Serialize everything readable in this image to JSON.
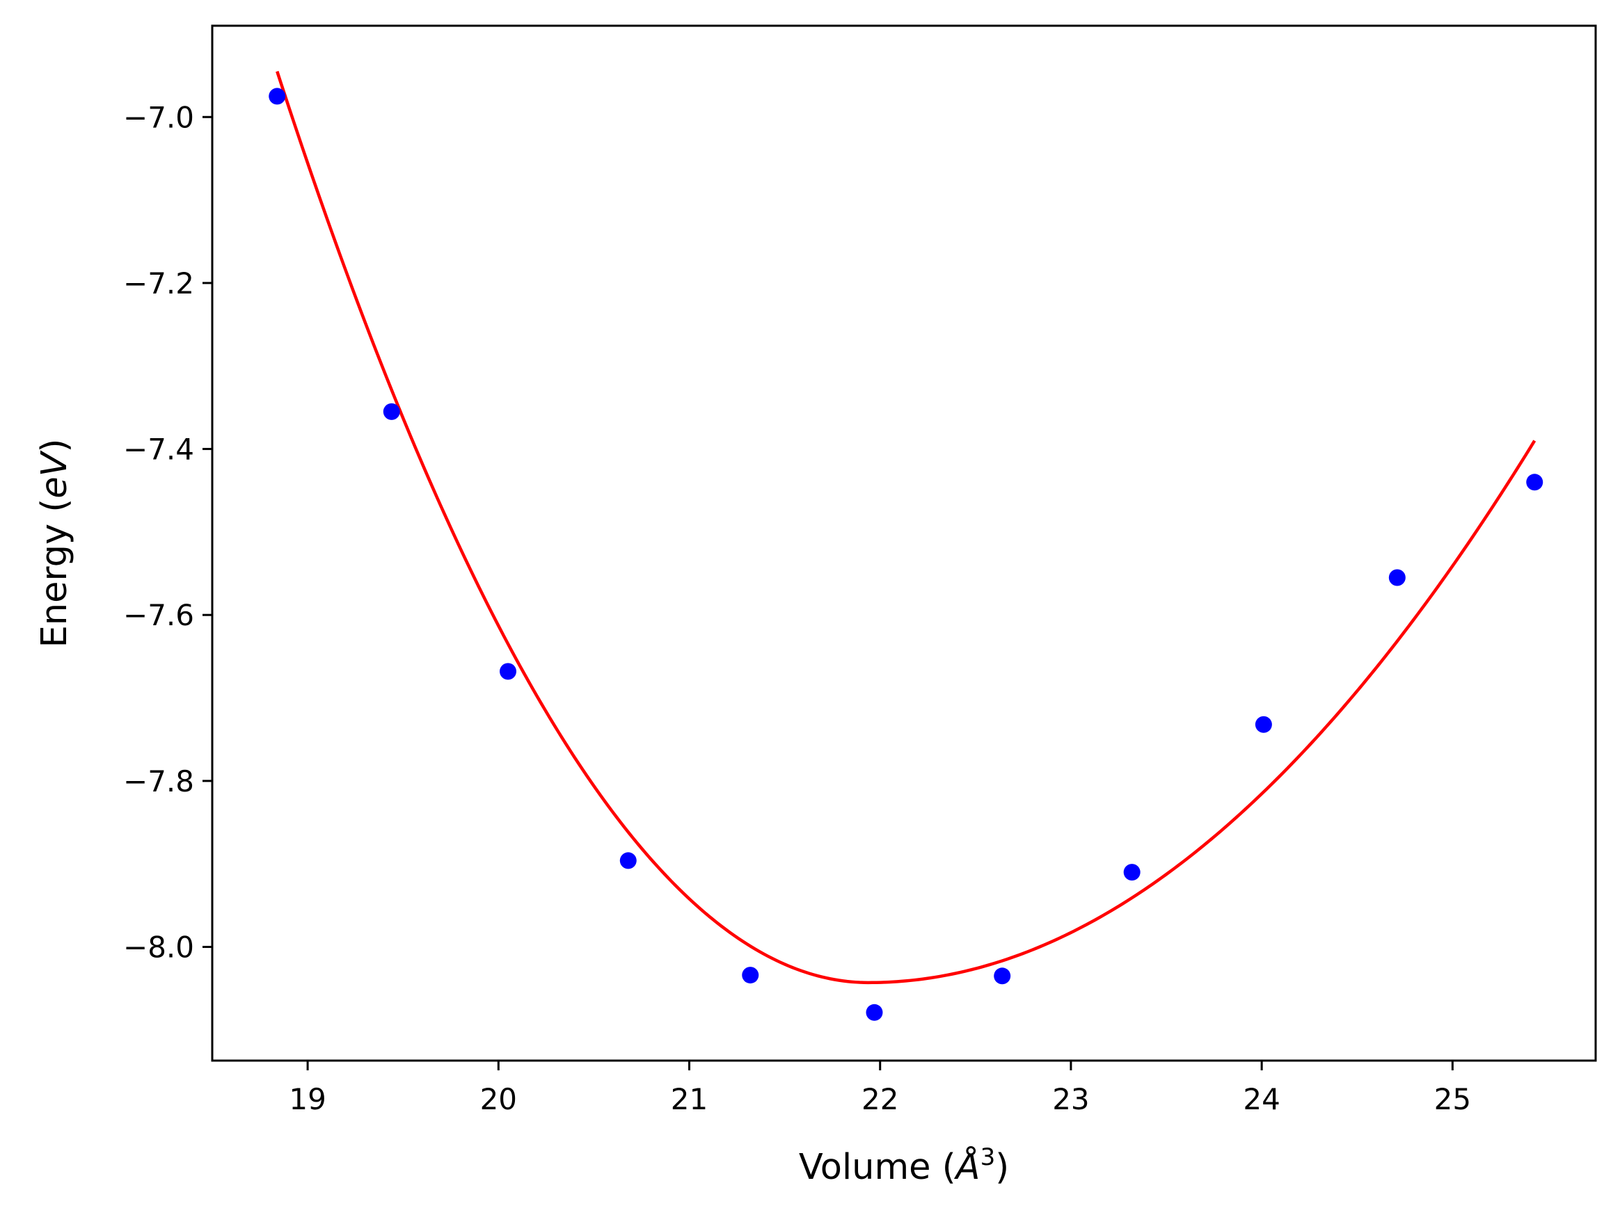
{
  "chart_data": {
    "type": "scatter",
    "xlabel": {
      "prefix": "Volume (",
      "symbol": "Å",
      "superscript": "3",
      "suffix": ")"
    },
    "ylabel": {
      "prefix": "Energy (",
      "unit": "eV",
      "suffix": ")"
    },
    "xlim": [
      18.5,
      25.75
    ],
    "ylim": [
      -8.137,
      -6.89
    ],
    "x_ticks": [
      19,
      20,
      21,
      22,
      23,
      24,
      25
    ],
    "x_tick_labels": [
      "19",
      "20",
      "21",
      "22",
      "23",
      "24",
      "25"
    ],
    "y_ticks": [
      -7.0,
      -7.2,
      -7.4,
      -7.6,
      -7.8,
      -8.0
    ],
    "y_tick_labels": [
      "−7.0",
      "−7.2",
      "−7.4",
      "−7.6",
      "−7.8",
      "−8.0"
    ],
    "grid": false,
    "series": [
      {
        "kind": "points",
        "color": "#0000ff",
        "x": [
          18.84,
          19.44,
          20.05,
          20.68,
          21.32,
          21.97,
          22.64,
          23.32,
          24.01,
          24.71,
          25.43
        ],
        "y": [
          -6.975,
          -7.355,
          -7.668,
          -7.896,
          -8.034,
          -8.079,
          -8.035,
          -7.91,
          -7.732,
          -7.555,
          -7.44
        ]
      },
      {
        "kind": "fit-line",
        "color": "#ff0000",
        "x_range": [
          18.84,
          25.43
        ],
        "vertex_x": 21.94,
        "vertex_y": -8.043,
        "x_ref": 18.84,
        "y_ref": -6.945,
        "x_end": 25.43,
        "y_end": -7.39
      }
    ]
  }
}
